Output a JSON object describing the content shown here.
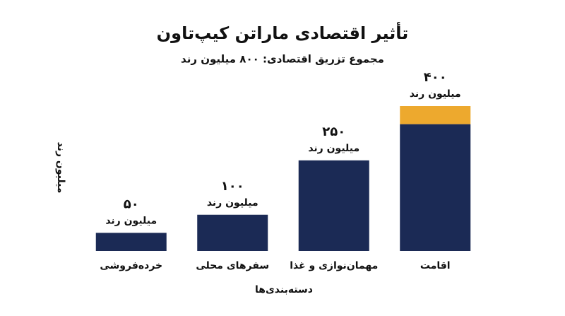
{
  "chart_data": {
    "type": "bar",
    "title": "تأثیر اقتصادی ماراتن کیپ‌تاون",
    "subtitle": "مجموع تزریق اقتصادی: ۸۰۰ میلیون رند",
    "x_label": "دسته‌بندی‌ها",
    "y_label": "میلیون رند",
    "categories": [
      "خرده‌فروشی",
      "سفرهای محلی",
      "مهمان‌نوازی و غذا",
      "اقامت"
    ],
    "series": [
      {
        "color": "#1b2a55",
        "values": [
          50,
          100,
          250,
          350
        ]
      },
      {
        "color": "#eda92e",
        "values": [
          null,
          null,
          null,
          50
        ]
      }
    ],
    "value_labels": [
      "۵۰",
      "۱۰۰",
      "۲۵۰",
      "۴۰۰"
    ],
    "value_unit": "میلیون رند",
    "ylim": [
      0,
      400
    ]
  }
}
